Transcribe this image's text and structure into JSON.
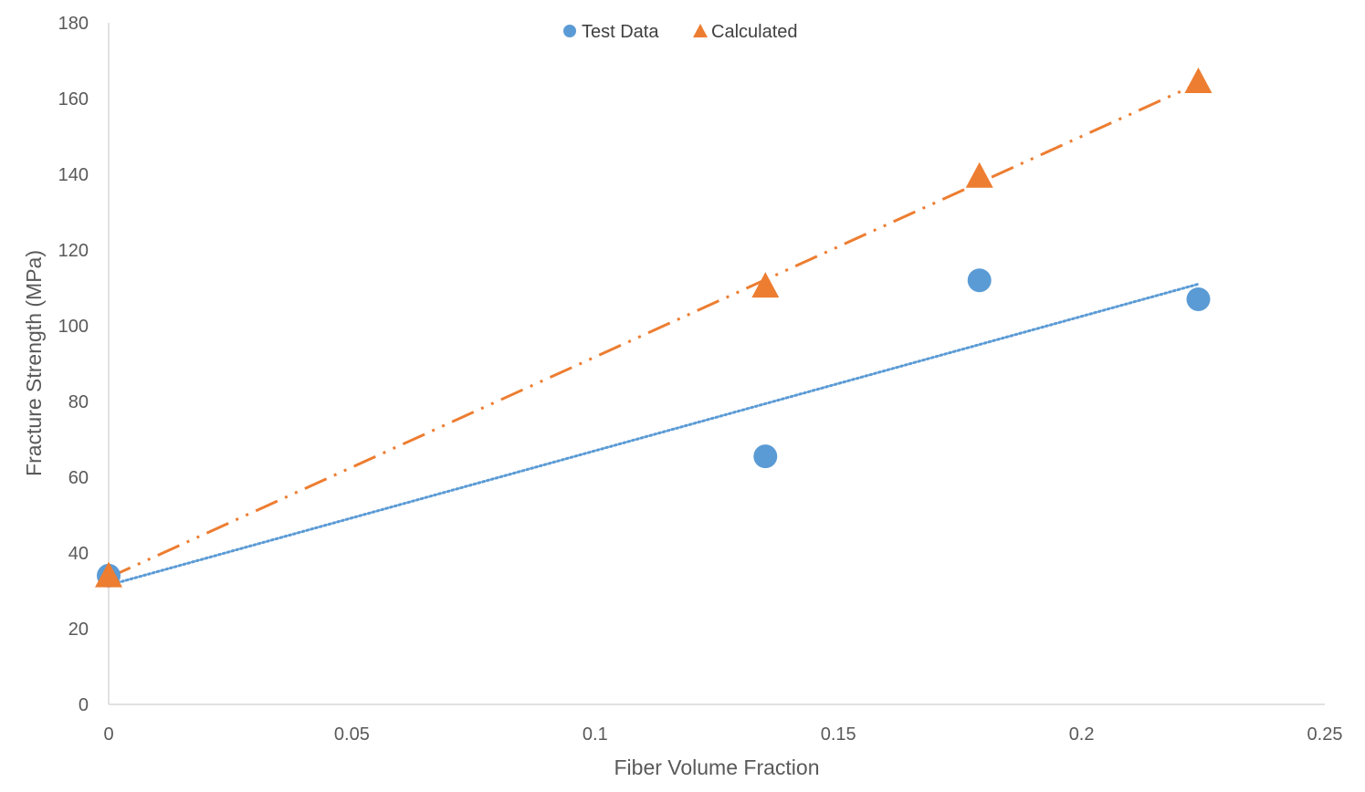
{
  "chart_data": {
    "type": "scatter",
    "title": "",
    "xlabel": "Fiber Volume Fraction",
    "ylabel": "Fracture Strength (MPa)",
    "xlim": [
      0,
      0.25
    ],
    "ylim": [
      0,
      180
    ],
    "x_ticks": [
      0,
      0.05,
      0.1,
      0.15,
      0.2,
      0.25
    ],
    "x_tick_labels": [
      "0",
      "0.05",
      "0.1",
      "0.15",
      "0.2",
      "0.25"
    ],
    "y_ticks": [
      0,
      20,
      40,
      60,
      80,
      100,
      120,
      140,
      160,
      180
    ],
    "y_tick_labels": [
      "0",
      "20",
      "40",
      "60",
      "80",
      "100",
      "120",
      "140",
      "160",
      "180"
    ],
    "grid": false,
    "legend_position": "top-center",
    "series": [
      {
        "name": "Test Data",
        "marker": "circle",
        "color": "#5b9bd5",
        "x": [
          0,
          0.135,
          0.179,
          0.224
        ],
        "y": [
          34,
          65.5,
          112,
          107
        ],
        "trendline": {
          "style": "dotted",
          "x": [
            0,
            0.224
          ],
          "y": [
            31.5,
            111
          ]
        }
      },
      {
        "name": "Calculated",
        "marker": "triangle",
        "color": "#ed7d31",
        "x": [
          0,
          0.135,
          0.179,
          0.224
        ],
        "y": [
          33.5,
          110,
          139,
          164
        ],
        "trendline": {
          "style": "dash-dot-dot",
          "x": [
            0,
            0.224
          ],
          "y": [
            33.5,
            164
          ]
        }
      }
    ]
  }
}
